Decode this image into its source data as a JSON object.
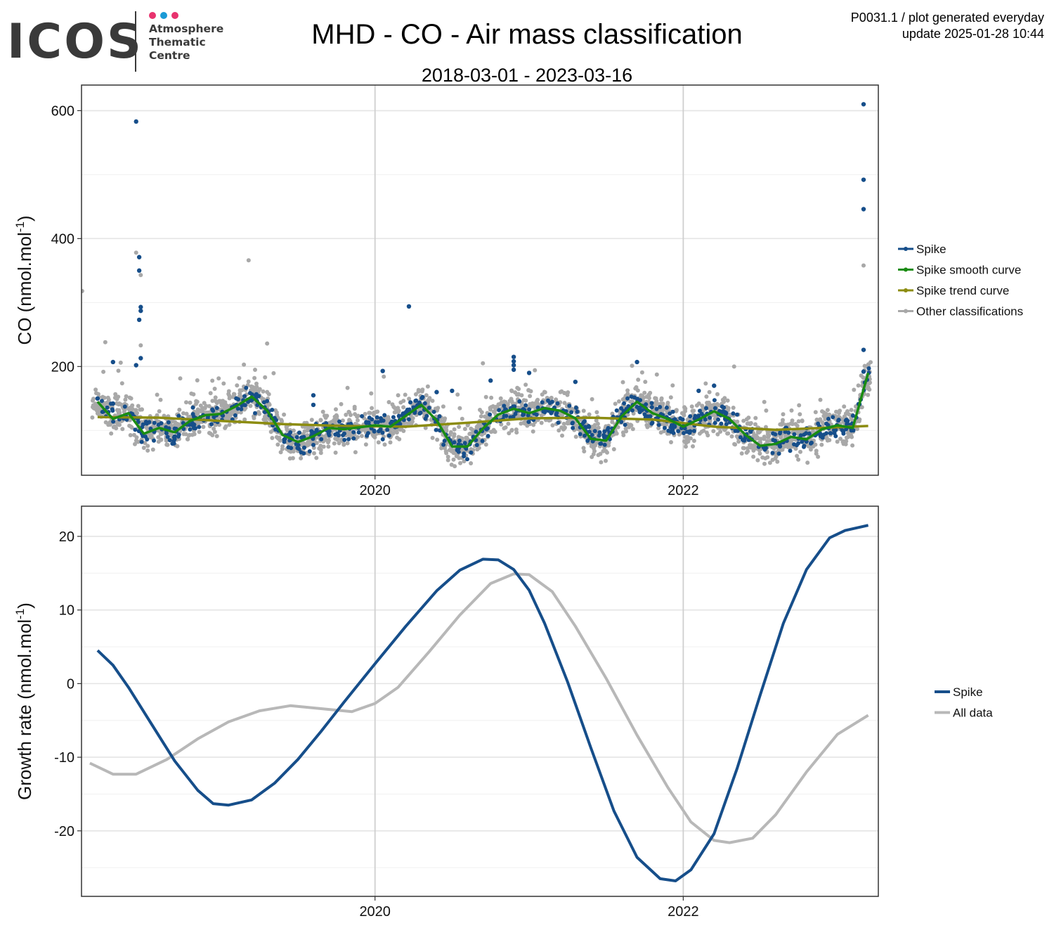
{
  "logo": {
    "mark": "ICOS",
    "lines": [
      "Atmosphere",
      "Thematic",
      "Centre"
    ],
    "dot_colors": [
      "#e8336e",
      "#1a9ad6",
      "#e8336e"
    ]
  },
  "header": {
    "title": "MHD - CO - Air mass classification",
    "subtitle": "2018-03-01 - 2023-03-16",
    "corner_line1": "P0031.1 / plot generated everyday",
    "corner_line2": "update  2025-01-28 10:44"
  },
  "colors": {
    "spike": "#164e8a",
    "smooth": "#1a8c12",
    "trend": "#8c8c10",
    "other": "#a8a8a8",
    "all_data": "#b8b8b8"
  },
  "chart_data": [
    {
      "type": "scatter",
      "ylabel": "CO (nmol.mol",
      "ylabel_sup": "-1",
      "ylabel_close": ")",
      "x_ticks": [
        "2020",
        "2022"
      ],
      "y_ticks": [
        200,
        400,
        600
      ],
      "ylim": [
        30,
        640
      ],
      "xlim": [
        "2018-03-01",
        "2023-03-16"
      ],
      "grid": true,
      "legend_position": "right",
      "legend": [
        "Spike",
        "Spike smooth curve",
        "Spike trend curve",
        "Other classifications"
      ],
      "series": [
        {
          "name": "Spike smooth curve",
          "x": [
            2018.2,
            2018.3,
            2018.4,
            2018.5,
            2018.6,
            2018.7,
            2018.8,
            2018.9,
            2019.0,
            2019.1,
            2019.2,
            2019.3,
            2019.4,
            2019.5,
            2019.6,
            2019.7,
            2019.8,
            2019.9,
            2020.0,
            2020.1,
            2020.2,
            2020.3,
            2020.4,
            2020.5,
            2020.6,
            2020.7,
            2020.8,
            2020.9,
            2021.0,
            2021.1,
            2021.2,
            2021.3,
            2021.4,
            2021.5,
            2021.6,
            2021.7,
            2021.8,
            2021.9,
            2022.0,
            2022.1,
            2022.2,
            2022.3,
            2022.4,
            2022.5,
            2022.6,
            2022.7,
            2022.8,
            2022.9,
            2023.0,
            2023.1,
            2023.2
          ],
          "y": [
            145,
            118,
            127,
            95,
            104,
            97,
            115,
            124,
            126,
            138,
            153,
            131,
            93,
            82,
            91,
            104,
            102,
            105,
            108,
            106,
            123,
            140,
            116,
            75,
            75,
            103,
            125,
            134,
            127,
            135,
            131,
            119,
            87,
            84,
            122,
            145,
            127,
            118,
            106,
            117,
            130,
            118,
            94,
            76,
            79,
            90,
            86,
            102,
            108,
            104,
            190
          ]
        },
        {
          "name": "Spike trend curve",
          "x": [
            2018.2,
            2018.6,
            2019.0,
            2019.4,
            2019.8,
            2020.2,
            2020.6,
            2021.0,
            2021.4,
            2021.8,
            2022.2,
            2022.6,
            2023.2
          ],
          "y": [
            121,
            120,
            115,
            110,
            107,
            106,
            112,
            119,
            120,
            117,
            106,
            101,
            107
          ]
        },
        {
          "name": "Spike",
          "x": [
            2018.45,
            2018.47,
            2018.47,
            2018.47,
            2018.48,
            2018.48,
            2018.48,
            2018.45,
            2018.2,
            2018.3,
            2020.22,
            2020.05,
            2020.9,
            2020.9,
            2020.9,
            2020.9,
            2021.7,
            2023.17,
            2023.17,
            2023.17,
            2023.17,
            2023.17,
            2018.3,
            2019.6,
            2019.6,
            2020.5,
            2020.4,
            2020.75,
            2021.0,
            2021.3,
            2022.2,
            2022.1
          ],
          "y": [
            583,
            371,
            350,
            273,
            293,
            287,
            213,
            202,
            150,
            207,
            294,
            193,
            215,
            208,
            202,
            195,
            207,
            610,
            492,
            446,
            226,
            192,
            142,
            155,
            140,
            162,
            160,
            178,
            190,
            176,
            170,
            162
          ]
        },
        {
          "name": "Other classifications",
          "x": [
            2018.45,
            2018.48,
            2018.48,
            2019.18,
            2018.25,
            2018.35,
            2019.3,
            2020.7,
            2023.17,
            2022.33,
            2018.1
          ],
          "y": [
            378,
            343,
            233,
            366,
            238,
            206,
            236,
            205,
            358,
            200,
            318
          ]
        }
      ]
    },
    {
      "type": "line",
      "ylabel": "Growth rate (nmol.mol",
      "ylabel_sup": "-1",
      "ylabel_close": ")",
      "x_ticks": [
        "2020",
        "2022"
      ],
      "y_ticks": [
        -20,
        -10,
        0,
        10,
        20
      ],
      "ylim": [
        -28.9,
        24.1
      ],
      "xlim": [
        "2018-03-01",
        "2023-03-16"
      ],
      "grid": true,
      "legend_position": "right",
      "legend": [
        "Spike",
        "All data"
      ],
      "series": [
        {
          "name": "Spike",
          "x": [
            2018.2,
            2018.3,
            2018.4,
            2018.55,
            2018.7,
            2018.85,
            2018.95,
            2019.05,
            2019.2,
            2019.35,
            2019.5,
            2019.65,
            2019.8,
            2020.0,
            2020.2,
            2020.4,
            2020.55,
            2020.7,
            2020.8,
            2020.9,
            2021.0,
            2021.1,
            2021.25,
            2021.4,
            2021.55,
            2021.7,
            2021.85,
            2021.95,
            2022.05,
            2022.2,
            2022.35,
            2022.5,
            2022.65,
            2022.8,
            2022.95,
            2023.05,
            2023.2
          ],
          "y": [
            4.5,
            2.5,
            -0.5,
            -5.5,
            -10.5,
            -14.5,
            -16.3,
            -16.5,
            -15.8,
            -13.5,
            -10.3,
            -6.5,
            -2.5,
            2.7,
            7.8,
            12.6,
            15.4,
            16.9,
            16.8,
            15.5,
            12.7,
            8.2,
            0.2,
            -8.7,
            -17.3,
            -23.6,
            -26.5,
            -26.8,
            -25.3,
            -20.4,
            -11.5,
            -1.5,
            8.2,
            15.5,
            19.8,
            20.8,
            21.5
          ]
        },
        {
          "name": "All data",
          "x": [
            2018.15,
            2018.3,
            2018.45,
            2018.65,
            2018.85,
            2019.05,
            2019.25,
            2019.45,
            2019.65,
            2019.85,
            2020.0,
            2020.15,
            2020.35,
            2020.55,
            2020.75,
            2020.9,
            2021.0,
            2021.15,
            2021.3,
            2021.5,
            2021.7,
            2021.9,
            2022.05,
            2022.2,
            2022.3,
            2022.45,
            2022.6,
            2022.8,
            2023.0,
            2023.2
          ],
          "y": [
            -10.8,
            -12.3,
            -12.3,
            -10.3,
            -7.5,
            -5.2,
            -3.7,
            -3.0,
            -3.4,
            -3.8,
            -2.7,
            -0.5,
            4.3,
            9.3,
            13.6,
            14.9,
            14.8,
            12.5,
            7.8,
            0.7,
            -7.0,
            -14.1,
            -18.8,
            -21.3,
            -21.6,
            -21.0,
            -17.8,
            -12.0,
            -6.9,
            -4.3
          ]
        }
      ]
    }
  ]
}
